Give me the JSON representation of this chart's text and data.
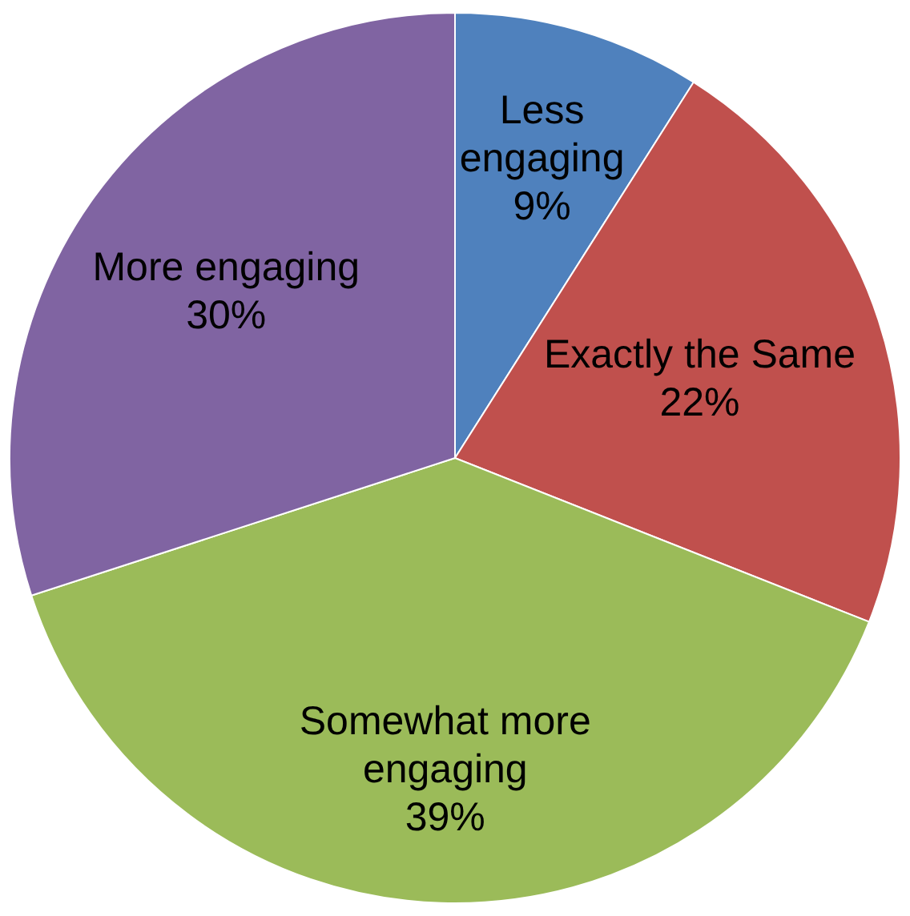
{
  "chart_data": {
    "type": "pie",
    "categories": [
      "Less engaging",
      "Exactly the Same",
      "Somewhat more engaging",
      "More engaging"
    ],
    "values": [
      9,
      22,
      39,
      30
    ],
    "colors": [
      "#4f81bd",
      "#c0504d",
      "#9bbb59",
      "#8064a2"
    ],
    "value_labels": [
      "9%",
      "22%",
      "39%",
      "30%"
    ]
  }
}
